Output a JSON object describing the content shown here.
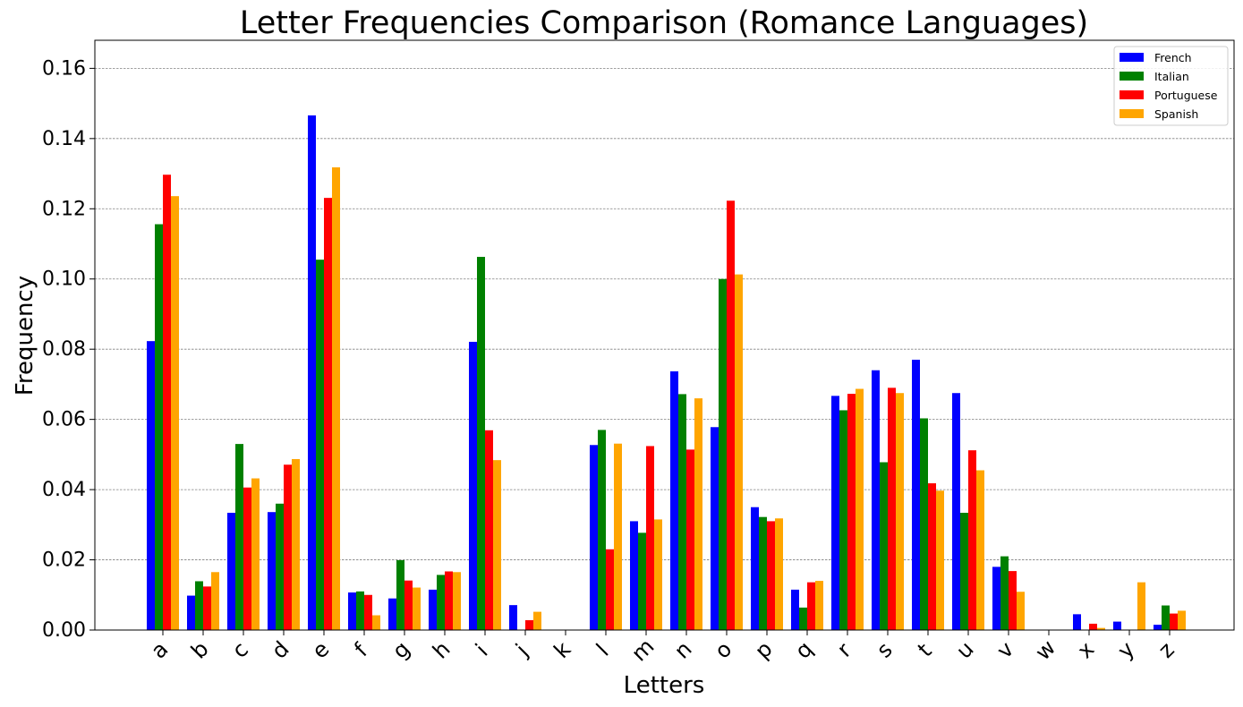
{
  "chart_data": {
    "type": "bar",
    "title": "Letter Frequencies Comparison (Romance Languages)",
    "xlabel": "Letters",
    "ylabel": "Frequency",
    "ylim": [
      0,
      0.168
    ],
    "yticks": [
      "0.00",
      "0.02",
      "0.04",
      "0.06",
      "0.08",
      "0.10",
      "0.12",
      "0.14",
      "0.16"
    ],
    "ytick_values": [
      0,
      0.02,
      0.04,
      0.06,
      0.08,
      0.1,
      0.12,
      0.14,
      0.16
    ],
    "grid": "horizontal dashed",
    "legend_position": "top-right",
    "categories": [
      "a",
      "b",
      "c",
      "d",
      "e",
      "f",
      "g",
      "h",
      "i",
      "j",
      "k",
      "l",
      "m",
      "n",
      "o",
      "p",
      "q",
      "r",
      "s",
      "t",
      "u",
      "v",
      "w",
      "x",
      "y",
      "z"
    ],
    "series": [
      {
        "name": "French",
        "color": "#0000ff",
        "values": [
          0.0823,
          0.0098,
          0.0334,
          0.0336,
          0.1466,
          0.0107,
          0.009,
          0.0115,
          0.0821,
          0.0071,
          0.0,
          0.0527,
          0.031,
          0.0737,
          0.0578,
          0.035,
          0.0115,
          0.0667,
          0.074,
          0.077,
          0.0675,
          0.018,
          0.0,
          0.0045,
          0.0024,
          0.0015
        ]
      },
      {
        "name": "Italian",
        "color": "#008000",
        "values": [
          0.1156,
          0.0139,
          0.053,
          0.036,
          0.1055,
          0.011,
          0.0199,
          0.0157,
          0.1063,
          0.0,
          0.0,
          0.057,
          0.0277,
          0.0672,
          0.1,
          0.0322,
          0.0064,
          0.0626,
          0.0478,
          0.0603,
          0.0334,
          0.021,
          0.0,
          0.0,
          0.0,
          0.007
        ]
      },
      {
        "name": "Portuguese",
        "color": "#ff0000",
        "values": [
          0.1297,
          0.0124,
          0.0406,
          0.0471,
          0.1231,
          0.01,
          0.0141,
          0.0167,
          0.0569,
          0.0028,
          0.0,
          0.023,
          0.0524,
          0.0514,
          0.1223,
          0.031,
          0.0136,
          0.0673,
          0.069,
          0.0418,
          0.0512,
          0.0168,
          0.0,
          0.0018,
          0.0,
          0.0047
        ]
      },
      {
        "name": "Spanish",
        "color": "#ffa500",
        "values": [
          0.1236,
          0.0165,
          0.0432,
          0.0487,
          0.1318,
          0.0042,
          0.0121,
          0.0165,
          0.0484,
          0.0052,
          0.0,
          0.0531,
          0.0315,
          0.066,
          0.1013,
          0.0318,
          0.014,
          0.0687,
          0.0675,
          0.0397,
          0.0455,
          0.0109,
          0.0,
          0.0006,
          0.0136,
          0.0055
        ]
      }
    ]
  }
}
